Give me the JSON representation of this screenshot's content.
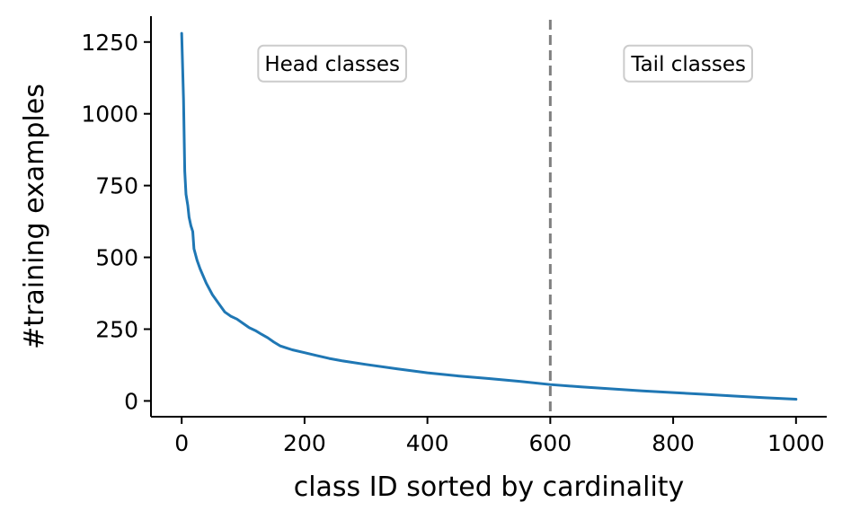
{
  "chart_data": {
    "type": "line",
    "xlabel": "class ID sorted by cardinality",
    "ylabel": "#training examples",
    "xlim": [
      -50,
      1050
    ],
    "ylim": [
      -55,
      1340
    ],
    "xticks": [
      0,
      200,
      400,
      600,
      800,
      1000
    ],
    "yticks": [
      0,
      250,
      500,
      750,
      1000,
      1250
    ],
    "grid": false,
    "series": [
      {
        "color": "#1f77b4",
        "x": [
          0,
          3,
          5,
          7,
          10,
          12,
          15,
          18,
          20,
          25,
          30,
          40,
          50,
          60,
          70,
          80,
          90,
          100,
          110,
          120,
          130,
          140,
          150,
          160,
          170,
          180,
          200,
          220,
          240,
          260,
          300,
          350,
          400,
          450,
          500,
          550,
          600,
          650,
          700,
          750,
          800,
          850,
          900,
          950,
          1000
        ],
        "values": [
          1280,
          1050,
          800,
          720,
          680,
          640,
          610,
          590,
          530,
          490,
          460,
          410,
          370,
          340,
          310,
          295,
          285,
          270,
          255,
          245,
          232,
          220,
          205,
          192,
          185,
          178,
          168,
          158,
          148,
          140,
          127,
          112,
          98,
          87,
          78,
          68,
          57,
          49,
          42,
          35,
          29,
          23,
          17,
          11,
          6
        ]
      }
    ],
    "threshold": {
      "x": 600,
      "style": "dashed",
      "color": "#808080"
    },
    "annotations": [
      {
        "text": "Head classes",
        "x": 245,
        "y": 1175
      },
      {
        "text": "Tail classes",
        "x": 825,
        "y": 1175
      }
    ]
  },
  "colors": {
    "line": "#1f77b4",
    "threshold": "#808080",
    "annotation_border": "#cccccc"
  }
}
